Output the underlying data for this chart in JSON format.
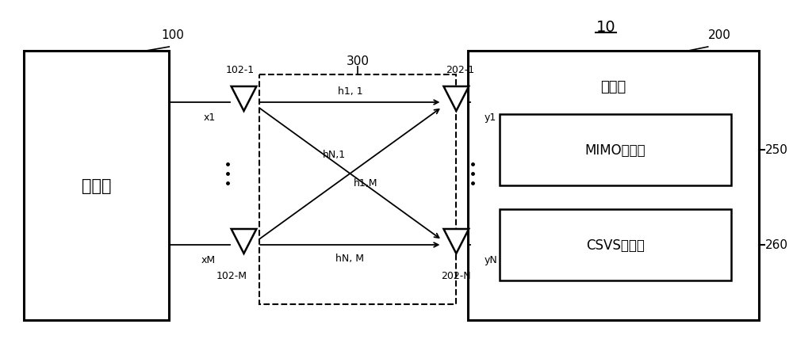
{
  "bg_color": "#ffffff",
  "title_label": "10",
  "transmitter_label": "发送器",
  "receiver_label": "接收器",
  "mimo_label": "MIMO解调器",
  "csvs_label": "CSVS检测器",
  "channel_label": "300",
  "tx_antenna_top_label": "102-1",
  "tx_antenna_bot_label": "102-M",
  "rx_antenna_top_label": "202-1",
  "rx_antenna_bot_label": "202-N",
  "x1_label": "x1",
  "xM_label": "xM",
  "y1_label": "y1",
  "yN_label": "yN",
  "h11_label": "h1, 1",
  "hN1_label": "hN,1",
  "h1M_label": "h1,M",
  "hNM_label": "hN, M",
  "label_100": "100",
  "label_200": "200",
  "label_250": "250",
  "label_260": "260",
  "figw": 10.0,
  "figh": 4.39,
  "dpi": 100
}
